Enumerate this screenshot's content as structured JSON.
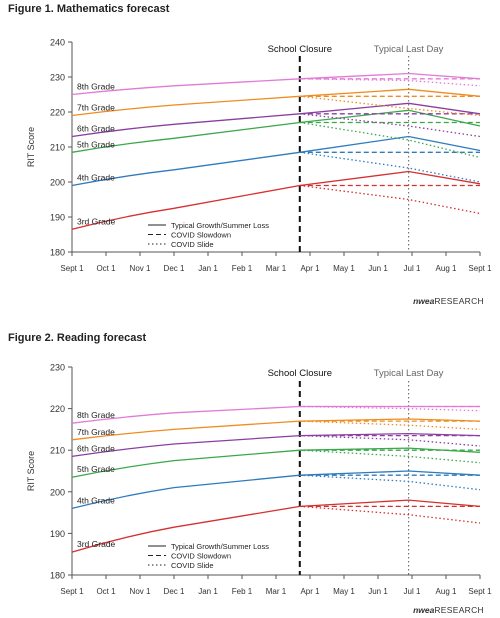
{
  "brand": {
    "logo_mark": "nwea",
    "logo_text": "RESEARCH"
  },
  "chart_data": [
    {
      "type": "line",
      "title": "Figure 1. Mathematics forecast",
      "ylabel": "RIT Score",
      "xlabel": "",
      "ylim": [
        180,
        240
      ],
      "yticks": [
        180,
        190,
        200,
        210,
        220,
        230,
        240
      ],
      "x_ticks": [
        "Sept 1",
        "Oct 1",
        "Nov 1",
        "Dec 1",
        "Jan 1",
        "Feb 1",
        "Mar 1",
        "Apr 1",
        "May 1",
        "Jun 1",
        "Jul 1",
        "Aug 1",
        "Sept 1"
      ],
      "grid": false,
      "annotations": [
        {
          "text": "School Closure",
          "x": 6.7,
          "style": "dashed-vertical"
        },
        {
          "text": "Typical Last Day",
          "x": 9.9,
          "style": "dotted-vertical"
        }
      ],
      "legend": {
        "position": "bottom-left",
        "entries": [
          {
            "label": "Typical Growth/Summer Loss",
            "style": "solid"
          },
          {
            "label": "COVID Slowdown",
            "style": "dashed"
          },
          {
            "label": "COVID Slide",
            "style": "dotted"
          }
        ]
      },
      "series": [
        {
          "name": "3rd Grade",
          "color": "#d62f2f",
          "typical": [
            [
              0,
              186.5
            ],
            [
              3,
              192.5
            ],
            [
              6.7,
              199
            ],
            [
              9.9,
              203
            ],
            [
              12,
              199.5
            ]
          ],
          "slowdown": [
            [
              6.7,
              199
            ],
            [
              12,
              199
            ]
          ],
          "slide": [
            [
              6.7,
              199
            ],
            [
              9.9,
              195
            ],
            [
              12,
              191
            ]
          ]
        },
        {
          "name": "4th Grade",
          "color": "#2e7bbd",
          "typical": [
            [
              0,
              199
            ],
            [
              3,
              203.5
            ],
            [
              6.7,
              208.5
            ],
            [
              9.9,
              213
            ],
            [
              12,
              209
            ]
          ],
          "slowdown": [
            [
              6.7,
              208.5
            ],
            [
              12,
              208.5
            ]
          ],
          "slide": [
            [
              6.7,
              208.5
            ],
            [
              9.9,
              204
            ],
            [
              12,
              200
            ]
          ]
        },
        {
          "name": "5th Grade",
          "color": "#3aa84a",
          "typical": [
            [
              0,
              208.5
            ],
            [
              3,
              212.5
            ],
            [
              6.7,
              217
            ],
            [
              9.9,
              220.5
            ],
            [
              12,
              216
            ]
          ],
          "slowdown": [
            [
              6.7,
              217
            ],
            [
              12,
              217
            ]
          ],
          "slide": [
            [
              6.7,
              217
            ],
            [
              9.9,
              212
            ],
            [
              12,
              207
            ]
          ]
        },
        {
          "name": "6th Grade",
          "color": "#8a3ea0",
          "typical": [
            [
              0,
              213
            ],
            [
              3,
              216.5
            ],
            [
              6.7,
              219.5
            ],
            [
              9.9,
              222.5
            ],
            [
              12,
              219.5
            ]
          ],
          "slowdown": [
            [
              6.7,
              219.5
            ],
            [
              12,
              219.5
            ]
          ],
          "slide": [
            [
              6.7,
              219.5
            ],
            [
              9.9,
              216
            ],
            [
              12,
              213
            ]
          ]
        },
        {
          "name": "7th Grade",
          "color": "#ef8c1f",
          "typical": [
            [
              0,
              219
            ],
            [
              3,
              222
            ],
            [
              6.7,
              224.5
            ],
            [
              9.9,
              226.5
            ],
            [
              12,
              224.5
            ]
          ],
          "slowdown": [
            [
              6.7,
              224.5
            ],
            [
              12,
              224.5
            ]
          ],
          "slide": [
            [
              6.7,
              224.5
            ],
            [
              9.9,
              221
            ],
            [
              12,
              219
            ]
          ]
        },
        {
          "name": "8th Grade",
          "color": "#e27ad6",
          "typical": [
            [
              0,
              225
            ],
            [
              3,
              227.5
            ],
            [
              6.7,
              229.5
            ],
            [
              9.9,
              231
            ],
            [
              12,
              229.5
            ]
          ],
          "slowdown": [
            [
              6.7,
              229.5
            ],
            [
              12,
              229.5
            ]
          ],
          "slide": [
            [
              6.7,
              229.5
            ],
            [
              9.9,
              229
            ],
            [
              12,
              227.5
            ]
          ]
        }
      ]
    },
    {
      "type": "line",
      "title": "Figure 2. Reading forecast",
      "ylabel": "RIT Score",
      "xlabel": "",
      "ylim": [
        180,
        230
      ],
      "yticks": [
        180,
        190,
        200,
        210,
        220,
        230
      ],
      "x_ticks": [
        "Sept 1",
        "Oct 1",
        "Nov 1",
        "Dec 1",
        "Jan 1",
        "Feb 1",
        "Mar 1",
        "Apr 1",
        "May 1",
        "Jun 1",
        "Jul 1",
        "Aug 1",
        "Sept 1"
      ],
      "grid": false,
      "annotations": [
        {
          "text": "School Closure",
          "x": 6.7,
          "style": "dashed-vertical"
        },
        {
          "text": "Typical Last Day",
          "x": 9.9,
          "style": "dotted-vertical"
        }
      ],
      "legend": {
        "position": "bottom-center",
        "entries": [
          {
            "label": "Typical Growth/Summer Loss",
            "style": "solid"
          },
          {
            "label": "COVID Slowdown",
            "style": "dashed"
          },
          {
            "label": "COVID Slide",
            "style": "dotted"
          }
        ]
      },
      "series": [
        {
          "name": "3rd Grade",
          "color": "#d62f2f",
          "typical": [
            [
              0,
              185.5
            ],
            [
              3,
              191.5
            ],
            [
              6.7,
              196.5
            ],
            [
              9.9,
              198
            ],
            [
              12,
              196.5
            ]
          ],
          "slowdown": [
            [
              6.7,
              196.5
            ],
            [
              12,
              196.5
            ]
          ],
          "slide": [
            [
              6.7,
              196.5
            ],
            [
              9.9,
              194.5
            ],
            [
              12,
              192.5
            ]
          ]
        },
        {
          "name": "4th Grade",
          "color": "#2e7bbd",
          "typical": [
            [
              0,
              196
            ],
            [
              3,
              201
            ],
            [
              6.7,
              204
            ],
            [
              9.9,
              205
            ],
            [
              12,
              204
            ]
          ],
          "slowdown": [
            [
              6.7,
              204
            ],
            [
              12,
              204
            ]
          ],
          "slide": [
            [
              6.7,
              204
            ],
            [
              9.9,
              202.5
            ],
            [
              12,
              200.5
            ]
          ]
        },
        {
          "name": "5th Grade",
          "color": "#3aa84a",
          "typical": [
            [
              0,
              203.5
            ],
            [
              3,
              207.5
            ],
            [
              6.7,
              210
            ],
            [
              9.9,
              210.5
            ],
            [
              12,
              209.5
            ]
          ],
          "slowdown": [
            [
              6.7,
              210
            ],
            [
              12,
              210
            ]
          ],
          "slide": [
            [
              6.7,
              210
            ],
            [
              9.9,
              208.5
            ],
            [
              12,
              207
            ]
          ]
        },
        {
          "name": "6th Grade",
          "color": "#8a3ea0",
          "typical": [
            [
              0,
              208.5
            ],
            [
              3,
              211.5
            ],
            [
              6.7,
              213.5
            ],
            [
              9.9,
              214
            ],
            [
              12,
              213.5
            ]
          ],
          "slowdown": [
            [
              6.7,
              213.5
            ],
            [
              12,
              213.5
            ]
          ],
          "slide": [
            [
              6.7,
              213.5
            ],
            [
              9.9,
              212.5
            ],
            [
              12,
              211
            ]
          ]
        },
        {
          "name": "7th Grade",
          "color": "#ef8c1f",
          "typical": [
            [
              0,
              212.5
            ],
            [
              3,
              215
            ],
            [
              6.7,
              217
            ],
            [
              9.9,
              217.5
            ],
            [
              12,
              217
            ]
          ],
          "slowdown": [
            [
              6.7,
              217
            ],
            [
              12,
              217
            ]
          ],
          "slide": [
            [
              6.7,
              217
            ],
            [
              9.9,
              216
            ],
            [
              12,
              215
            ]
          ]
        },
        {
          "name": "8th Grade",
          "color": "#e27ad6",
          "typical": [
            [
              0,
              216.5
            ],
            [
              3,
              219
            ],
            [
              6.7,
              220.5
            ],
            [
              9.9,
              220.5
            ],
            [
              12,
              220.5
            ]
          ],
          "slowdown": [
            [
              6.7,
              220.5
            ],
            [
              12,
              220.5
            ]
          ],
          "slide": [
            [
              6.7,
              220.5
            ],
            [
              9.9,
              220
            ],
            [
              12,
              219.5
            ]
          ]
        }
      ]
    }
  ]
}
